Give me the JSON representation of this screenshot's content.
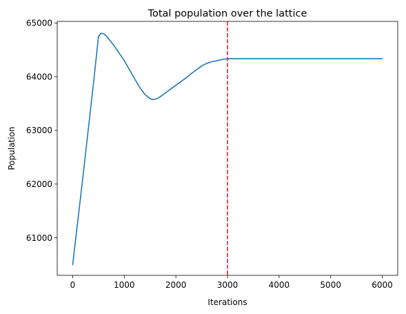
{
  "chart_data": {
    "type": "line",
    "title": "Total population over the lattice",
    "xlabel": "Iterations",
    "ylabel": "Population",
    "xlim": [
      -300,
      6300
    ],
    "ylim": [
      60300,
      65030
    ],
    "xticks": [
      0,
      1000,
      2000,
      3000,
      4000,
      5000,
      6000
    ],
    "yticks": [
      61000,
      62000,
      63000,
      64000,
      65000
    ],
    "xtick_labels": [
      "0",
      "1000",
      "2000",
      "3000",
      "4000",
      "5000",
      "6000"
    ],
    "ytick_labels": [
      "61000",
      "62000",
      "63000",
      "64000",
      "65000"
    ],
    "grid": false,
    "series": [
      {
        "color": "#1f77b4",
        "x": [
          0,
          100,
          200,
          300,
          400,
          450,
          500,
          550,
          600,
          650,
          700,
          800,
          900,
          1000,
          1100,
          1200,
          1300,
          1400,
          1500,
          1550,
          1600,
          1650,
          1700,
          1800,
          1900,
          2000,
          2100,
          2200,
          2300,
          2400,
          2500,
          2600,
          2700,
          2800,
          2900,
          3000,
          3100,
          3500,
          4000,
          4500,
          5000,
          5500,
          6000
        ],
        "y": [
          60500,
          61320,
          62150,
          63000,
          63850,
          64300,
          64750,
          64810,
          64800,
          64760,
          64700,
          64580,
          64440,
          64300,
          64130,
          63960,
          63800,
          63670,
          63590,
          63575,
          63580,
          63600,
          63630,
          63700,
          63770,
          63840,
          63910,
          63980,
          64060,
          64130,
          64200,
          64250,
          64280,
          64300,
          64320,
          64335,
          64335,
          64335,
          64335,
          64335,
          64335,
          64335,
          64335
        ]
      }
    ],
    "vlines": [
      {
        "x": 3000,
        "color": "#d62728",
        "style": "dashed"
      }
    ]
  }
}
